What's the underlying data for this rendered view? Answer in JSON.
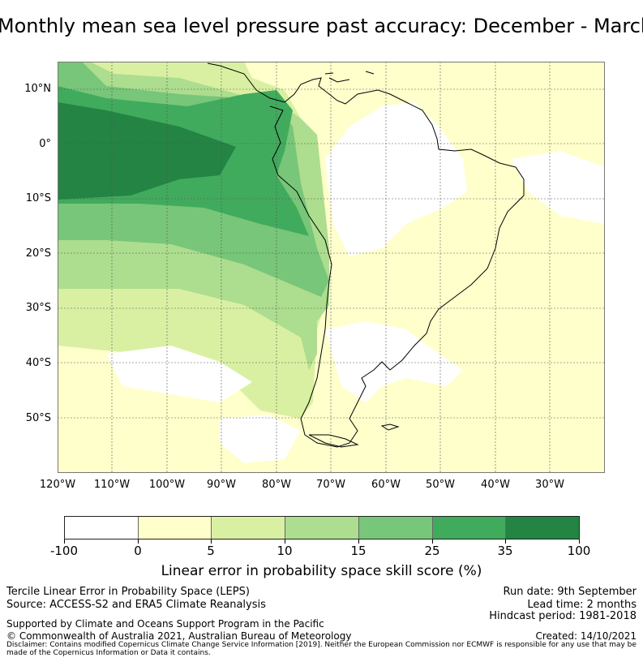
{
  "map": {
    "title": "Monthly mean sea level pressure past accuracy: December - March",
    "lat_labels": [
      "10°N",
      "0°",
      "10°S",
      "20°S",
      "30°S",
      "40°S",
      "50°S"
    ],
    "lon_labels": [
      "120°W",
      "110°W",
      "100°W",
      "90°W",
      "80°W",
      "70°W",
      "60°W",
      "50°W",
      "40°W",
      "30°W"
    ],
    "extent": {
      "lon_min": -120,
      "lon_max": -20,
      "lat_min": -60,
      "lat_max": 15
    },
    "gridlines": true
  },
  "legend": {
    "ticks": [
      "-100",
      "0",
      "5",
      "10",
      "15",
      "25",
      "35",
      "100"
    ],
    "colors": [
      "#ffffff",
      "#ffffcc",
      "#d9f0a3",
      "#addd8e",
      "#78c679",
      "#41ab5d",
      "#238443"
    ],
    "label": "Linear error in probability space skill score (%)"
  },
  "footer": {
    "product": "Tercile Linear Error in Probability Space (LEPS)",
    "source": "Source: ACCESS-S2 and ERA5 Climate Reanalysis",
    "support": "Supported by Climate and Oceans Support Program in the Pacific",
    "copyright": "© Commonwealth of Australia 2021, Australian Bureau of Meteorology",
    "disclaimer": "Disclaimer: Contains modified Copernicus Climate Change Service Information [2019]. Neither the European Commission nor ECMWF is responsible for any use that may be made of the Copernicus Information or Data it contains.",
    "run_date": "Run date: 9th September",
    "lead_time": "Lead time: 2 months",
    "hindcast": "Hindcast period: 1981-2018",
    "created": "Created: 14/10/2021"
  }
}
